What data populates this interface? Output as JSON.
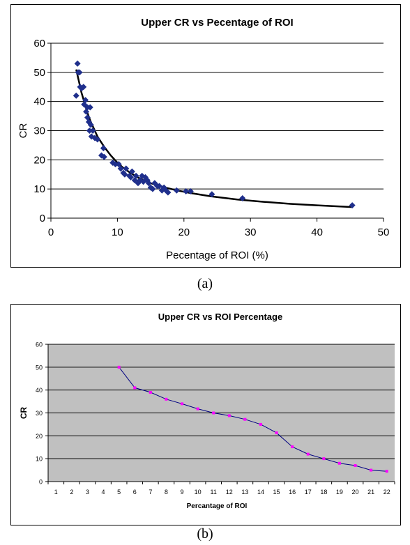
{
  "chart_data": [
    {
      "type": "scatter",
      "title": "Upper CR vs Pecentage of ROI",
      "xlabel": "Pecentage of ROI (%)",
      "ylabel": "CR",
      "xlim": [
        0,
        50
      ],
      "ylim": [
        0,
        60
      ],
      "xticks": [
        0,
        10,
        20,
        30,
        40,
        50
      ],
      "yticks": [
        0,
        10,
        20,
        30,
        40,
        50,
        60
      ],
      "grid": "horizontal",
      "point_color": "#1f2f8c",
      "trend_color": "#000000",
      "points": [
        [
          3.8,
          42
        ],
        [
          4.0,
          53
        ],
        [
          4.1,
          50
        ],
        [
          4.3,
          50
        ],
        [
          4.4,
          45
        ],
        [
          4.6,
          44.5
        ],
        [
          4.9,
          45
        ],
        [
          5.0,
          39
        ],
        [
          5.2,
          40.5
        ],
        [
          5.3,
          36.5
        ],
        [
          5.5,
          38
        ],
        [
          5.5,
          34.5
        ],
        [
          5.7,
          33
        ],
        [
          5.8,
          30
        ],
        [
          5.9,
          38
        ],
        [
          6.0,
          32
        ],
        [
          6.1,
          28
        ],
        [
          6.3,
          30
        ],
        [
          6.6,
          27.5
        ],
        [
          7.0,
          27
        ],
        [
          7.6,
          21.5
        ],
        [
          7.9,
          24
        ],
        [
          8.0,
          21
        ],
        [
          9.3,
          19
        ],
        [
          9.7,
          18.5
        ],
        [
          10.2,
          18.5
        ],
        [
          10.5,
          17
        ],
        [
          10.9,
          15.5
        ],
        [
          11.1,
          15
        ],
        [
          11.3,
          17
        ],
        [
          11.8,
          14.5
        ],
        [
          12.0,
          14
        ],
        [
          12.2,
          16
        ],
        [
          12.6,
          13
        ],
        [
          12.8,
          14.5
        ],
        [
          13.1,
          12
        ],
        [
          13.4,
          13
        ],
        [
          13.7,
          14.5
        ],
        [
          13.9,
          12.5
        ],
        [
          14.2,
          14
        ],
        [
          14.5,
          13
        ],
        [
          14.7,
          12
        ],
        [
          15.0,
          10.5
        ],
        [
          15.3,
          10
        ],
        [
          15.6,
          12
        ],
        [
          16.0,
          11
        ],
        [
          16.3,
          11
        ],
        [
          16.7,
          9.5
        ],
        [
          17.0,
          10.5
        ],
        [
          17.3,
          9.5
        ],
        [
          17.6,
          8.8
        ],
        [
          18.9,
          9.5
        ],
        [
          20.3,
          9.2
        ],
        [
          21.0,
          9.2
        ],
        [
          24.2,
          8.2
        ],
        [
          28.8,
          6.8
        ],
        [
          45.3,
          4.4
        ]
      ],
      "trend": [
        [
          3.8,
          51
        ],
        [
          4.2,
          47
        ],
        [
          4.6,
          43
        ],
        [
          5,
          40
        ],
        [
          5.5,
          36
        ],
        [
          6,
          33
        ],
        [
          7,
          28
        ],
        [
          8,
          24.5
        ],
        [
          9,
          21.5
        ],
        [
          10,
          19
        ],
        [
          11,
          17
        ],
        [
          12,
          15.5
        ],
        [
          13,
          14
        ],
        [
          14,
          13
        ],
        [
          15,
          12
        ],
        [
          17,
          10.6
        ],
        [
          19,
          9.5
        ],
        [
          21,
          8.6
        ],
        [
          24,
          7.5
        ],
        [
          28,
          6.4
        ],
        [
          32,
          5.6
        ],
        [
          36,
          4.9
        ],
        [
          40,
          4.4
        ],
        [
          45.3,
          3.8
        ]
      ]
    },
    {
      "type": "line",
      "title": "Upper CR vs ROI Percentage",
      "xlabel": "Percantage of ROI",
      "ylabel": "CR",
      "categories": [
        "1",
        "2",
        "3",
        "4",
        "5",
        "6",
        "7",
        "8",
        "9",
        "10",
        "11",
        "12",
        "13",
        "14",
        "15",
        "16",
        "17",
        "18",
        "19",
        "20",
        "21",
        "22"
      ],
      "ylim": [
        0,
        60
      ],
      "yticks": [
        0,
        10,
        20,
        30,
        40,
        50,
        60
      ],
      "grid": "horizontal",
      "plot_background": "#c0c0c0",
      "line_color": "#000080",
      "marker_color": "#ff00ff",
      "series": [
        {
          "x": [
            5,
            6,
            7,
            8,
            9,
            10,
            11,
            12,
            13,
            14,
            15,
            16,
            17,
            18,
            19,
            20,
            21,
            22
          ],
          "values": [
            50,
            41,
            39,
            36,
            34,
            31.8,
            30,
            28.8,
            27.2,
            25,
            21.3,
            15.2,
            12,
            10,
            8,
            7,
            5,
            4.5
          ]
        }
      ]
    }
  ],
  "captions": {
    "a": "(a)",
    "b": "(b)"
  }
}
